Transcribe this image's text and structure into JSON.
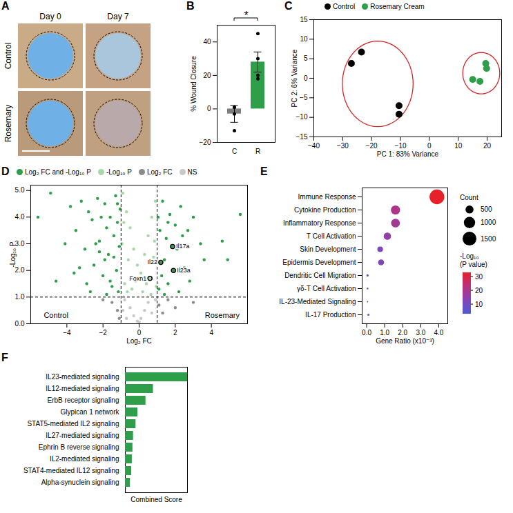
{
  "panel_a": {
    "letter": "A",
    "columns": [
      "Day 0",
      "Day 7"
    ],
    "rows": [
      "Control",
      "Rosemary"
    ]
  },
  "chart_data": [
    {
      "letter": "B",
      "type": "bar",
      "categories": [
        "C",
        "R"
      ],
      "values": [
        -3,
        28
      ],
      "errors": [
        5,
        6
      ],
      "points": [
        [
          1,
          1,
          -3,
          -13
        ],
        [
          45,
          30,
          20,
          18
        ]
      ],
      "colors": [
        "#7f7f7f",
        "#2e9e4a"
      ],
      "ylabel": "% Wound Closure",
      "ylim": [
        -20,
        50
      ],
      "yticks": [
        -20,
        0,
        20,
        40
      ],
      "significance": "*"
    },
    {
      "letter": "C",
      "type": "scatter",
      "xlabel": "PC 1: 83% Variance",
      "ylabel": "PC 2: 6% Variance",
      "xlim": [
        -40,
        25
      ],
      "xticks": [
        -40,
        -30,
        -20,
        -10,
        0,
        10,
        20
      ],
      "ylim": [
        -15,
        15
      ],
      "yticks": [
        -15,
        -10,
        -5,
        0,
        5,
        10,
        15
      ],
      "legend": "top",
      "series": [
        {
          "name": "Control",
          "color": "#000000",
          "x": [
            -27,
            -23.5,
            -10.5,
            -10.5
          ],
          "values": [
            3.8,
            6.7,
            -7,
            -9.2
          ]
        },
        {
          "name": "Rosemary Cream",
          "color": "#2e9e4a",
          "x": [
            15,
            17.5,
            19.5,
            19.8
          ],
          "values": [
            -0.3,
            -0.8,
            3.8,
            2.5
          ]
        }
      ]
    },
    {
      "letter": "D",
      "type": "scatter",
      "xlabel": "Log₂ FC",
      "ylabel": "-Log₁₀ P",
      "xlim": [
        -6,
        6
      ],
      "xticks": [
        -4,
        -2,
        0,
        2,
        4
      ],
      "ylim": [
        0,
        5.2
      ],
      "yticks": [
        0,
        1,
        2,
        3,
        4,
        5
      ],
      "legend": "top",
      "thresholds": {
        "x": [
          -1,
          1
        ],
        "y": 1
      },
      "series": [
        {
          "name": "Log₂ FC and -Log₁₀ P",
          "color": "#2e9e4a",
          "x": [
            -5.6,
            -4.9,
            -4.6,
            -3.8,
            -3.5,
            -3.2,
            -3.0,
            -2.8,
            -2.6,
            -2.5,
            -2.3,
            -2.2,
            -2.0,
            -1.9,
            -1.8,
            -1.7,
            -1.6,
            -1.5,
            -1.4,
            -1.3,
            -1.25,
            -1.2,
            -1.15,
            -1.1,
            -1.05,
            -2.9,
            -3.3,
            -2.4,
            -1.9,
            -1.6,
            -4.1,
            -3.6,
            -2.7,
            -2.1,
            -1.4,
            -1.2,
            -1.8,
            -2.2,
            5.6,
            4.9,
            4.6,
            3.4,
            3.0,
            2.7,
            2.5,
            2.3,
            2.1,
            2.0,
            1.9,
            1.85,
            1.7,
            1.6,
            1.5,
            1.4,
            1.3,
            1.25,
            1.2,
            1.15,
            1.1,
            1.05,
            2.8,
            3.6,
            2.2,
            1.6,
            1.4,
            2.4
          ],
          "values": [
            4.0,
            4.9,
            1.6,
            4.4,
            3.5,
            4.6,
            2.8,
            4.2,
            3.9,
            2.2,
            4.7,
            3.1,
            1.8,
            4.5,
            3.6,
            2.6,
            4.0,
            1.4,
            3.3,
            4.8,
            2.0,
            3.8,
            1.2,
            2.9,
            4.3,
            1.5,
            2.1,
            3.0,
            2.4,
            1.6,
            3.0,
            1.9,
            1.2,
            4.0,
            2.5,
            4.5,
            1.1,
            2.7,
            4.1,
            2.4,
            3.1,
            3.0,
            4.0,
            3.5,
            2.1,
            4.4,
            2.8,
            3.7,
            2.0,
            2.9,
            4.1,
            1.5,
            3.2,
            2.4,
            4.6,
            1.8,
            2.3,
            3.5,
            1.3,
            4.0,
            1.6,
            2.4,
            1.2,
            3.8,
            1.1,
            3.3
          ]
        },
        {
          "name": "-Log₁₀ P",
          "color": "#a8d8a8",
          "x": [
            -0.9,
            -0.7,
            -0.5,
            -0.3,
            -0.1,
            0.1,
            0.3,
            0.5,
            0.7,
            0.9,
            -0.8,
            -0.6,
            -0.4,
            -0.2,
            0.2,
            0.4,
            0.6,
            0.8,
            -0.95,
            0.95,
            -0.85,
            0.85,
            0.65,
            -0.65
          ],
          "values": [
            4.9,
            4.2,
            3.6,
            2.8,
            2.2,
            1.9,
            2.6,
            3.3,
            4.0,
            4.6,
            1.5,
            2.4,
            1.3,
            1.6,
            1.2,
            1.5,
            1.7,
            2.5,
            3.0,
            1.4,
            3.8,
            3.1,
            1.1,
            1.2
          ]
        },
        {
          "name": "Log₂ FC",
          "color": "#8c8c8c",
          "x": [
            -1.5,
            -1.2,
            -1.1,
            1.1,
            1.3,
            1.6,
            2.0,
            3.0,
            -2.0
          ],
          "values": [
            0.8,
            0.5,
            0.2,
            0.7,
            0.4,
            0.9,
            0.6,
            0.8,
            0.9
          ]
        },
        {
          "name": "NS",
          "color": "#c8c8c8",
          "x": [
            -0.8,
            -0.5,
            -0.3,
            -0.1,
            0.0,
            0.1,
            0.3,
            0.5,
            0.7,
            -0.7,
            0.9,
            -0.9
          ],
          "values": [
            0.9,
            0.6,
            0.3,
            0.1,
            0.05,
            0.2,
            0.5,
            0.8,
            0.4,
            0.2,
            0.9,
            0.5
          ]
        }
      ],
      "point_labels": [
        {
          "text": "Il17a",
          "x": 1.85,
          "y": 2.9
        },
        {
          "text": "Il22",
          "x": 1.2,
          "y": 2.3
        },
        {
          "text": "Il23a",
          "x": 1.9,
          "y": 2.0
        },
        {
          "text": "Foxn1",
          "x": 0.6,
          "y": 1.7
        }
      ],
      "annotations": [
        {
          "text": "Control",
          "x": -4.6,
          "y": 0.3
        },
        {
          "text": "Rosemary",
          "x": 4.6,
          "y": 0.3
        }
      ]
    },
    {
      "letter": "E",
      "type": "bubble",
      "categories": [
        "Immune Response",
        "Cytokine Production",
        "Inflammatory Response",
        "T Cell Activation",
        "Skin Development",
        "Epidermis Development",
        "Dendritic Cell Migration",
        "γδ-T Cell Activation",
        "IL-23-Mediated Signaling",
        "IL-17 Production"
      ],
      "values": [
        3.9,
        1.6,
        1.6,
        1.15,
        0.75,
        0.8,
        0.05,
        0.05,
        0.05,
        0.1
      ],
      "sizes": [
        1700,
        650,
        600,
        420,
        250,
        280,
        40,
        25,
        15,
        35
      ],
      "color_values": [
        33,
        21,
        19,
        16,
        11,
        12,
        5,
        4,
        4,
        5
      ],
      "xlabel": "Gene Ratio (x10⁻³)",
      "xlim": [
        -0.25,
        4.5
      ],
      "xticks": [
        0,
        1,
        2,
        3,
        4
      ],
      "size_label": "Count",
      "size_range": [
        0,
        1800
      ],
      "size_ticks": [
        500,
        1000,
        1500
      ],
      "color_label": "-Log₁₀ (P value)",
      "color_range": [
        3,
        33
      ],
      "color_ticks": [
        10,
        20,
        30
      ]
    },
    {
      "letter": "F",
      "type": "bar",
      "orientation": "horizontal",
      "categories": [
        "IL23-mediated signaling",
        "IL12-mediated signaling",
        "ErbB receptor signaling",
        "Glypican 1 network",
        "STAT5-mediated IL2 signaling",
        "IL27-mediated signaling",
        "Ephrin B reverse signaling",
        "IL2-mediated signaling",
        "STAT4-mediated IL12 signaling",
        "Alpha-synuclein signaling"
      ],
      "values": [
        100,
        45,
        33,
        20,
        17,
        13,
        12,
        11,
        10,
        8
      ],
      "color": "#2e9e4a",
      "xlabel": "Combined Score",
      "xlim": [
        0,
        100
      ],
      "xticks": [],
      "tick_labels": "y"
    }
  ]
}
